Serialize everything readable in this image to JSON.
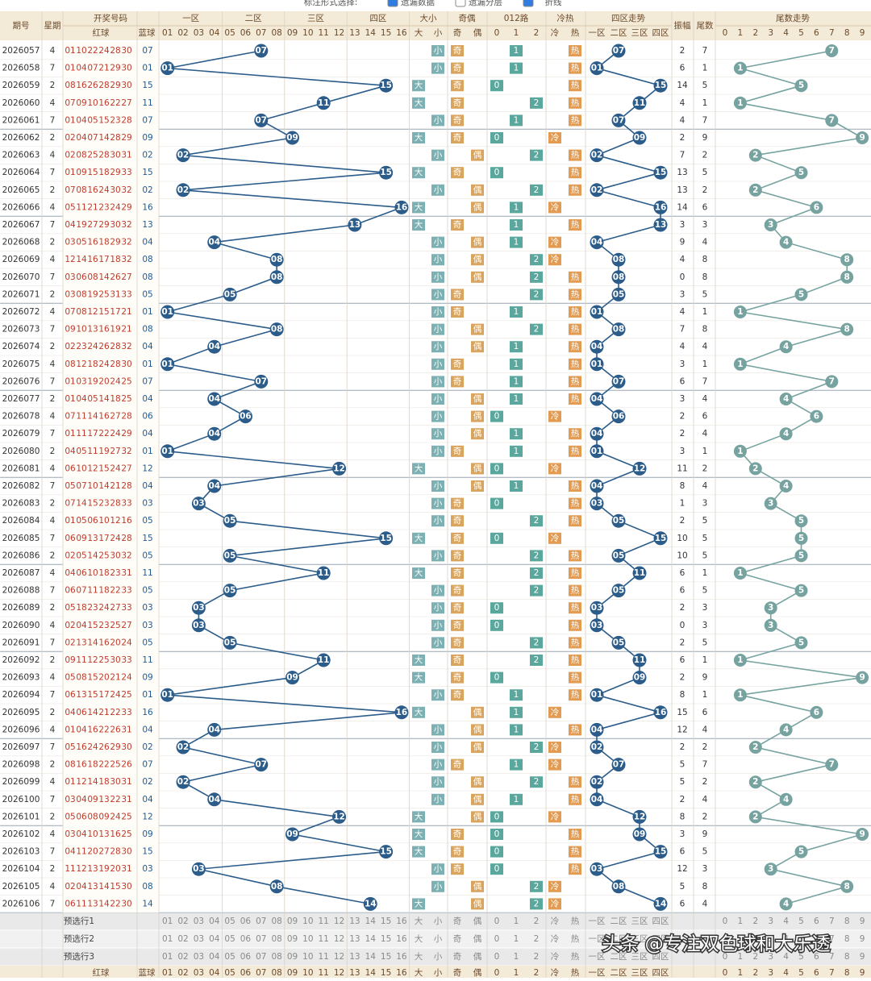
{
  "toolbar": {
    "label": "标注形式选择:",
    "options": [
      "遗漏数据",
      "遗漏分层",
      "折线"
    ]
  },
  "header": {
    "period": "期号",
    "week": "星期",
    "draw": "开奖号码",
    "red": "红球",
    "blue": "蓝球",
    "zones": [
      "一区",
      "二区",
      "三区",
      "四区"
    ],
    "size": "大小",
    "parity": "奇偶",
    "route": "012路",
    "heat": "冷热",
    "zone_trend": "四区走势",
    "amp": "振幅",
    "tail": "尾数",
    "tail_trend": "尾数走势",
    "blue_cols": [
      "01",
      "02",
      "03",
      "04",
      "05",
      "06",
      "07",
      "08",
      "09",
      "10",
      "11",
      "12",
      "13",
      "14",
      "15",
      "16"
    ],
    "size_cols": [
      "大",
      "小"
    ],
    "parity_cols": [
      "奇",
      "偶"
    ],
    "route_cols": [
      0,
      1,
      2
    ],
    "heat_cols": [
      "冷",
      "热"
    ],
    "zone_cols": [
      "一区",
      "二区",
      "三区",
      "四区"
    ],
    "tail_cols": [
      0,
      1,
      2,
      3,
      4,
      5,
      6,
      7,
      8,
      9
    ]
  },
  "rows": [
    [
      "2026057",
      4,
      [
        "01",
        "10",
        "22",
        "24",
        "28",
        "30"
      ],
      "07",
      "小",
      "奇",
      1,
      "热",
      2,
      7
    ],
    [
      "2026058",
      7,
      [
        "01",
        "04",
        "07",
        "21",
        "29",
        "30"
      ],
      "01",
      "小",
      "奇",
      1,
      "热",
      6,
      1
    ],
    [
      "2026059",
      2,
      [
        "08",
        "16",
        "26",
        "28",
        "29",
        "30"
      ],
      "15",
      "大",
      "奇",
      0,
      "热",
      14,
      5
    ],
    [
      "2026060",
      4,
      [
        "07",
        "09",
        "10",
        "16",
        "22",
        "27"
      ],
      "11",
      "大",
      "奇",
      2,
      "热",
      4,
      1
    ],
    [
      "2026061",
      7,
      [
        "01",
        "04",
        "05",
        "15",
        "23",
        "28"
      ],
      "07",
      "小",
      "奇",
      1,
      "热",
      4,
      7
    ],
    [
      "2026062",
      2,
      [
        "02",
        "04",
        "07",
        "14",
        "28",
        "29"
      ],
      "09",
      "大",
      "奇",
      0,
      "冷",
      2,
      9
    ],
    [
      "2026063",
      4,
      [
        "02",
        "08",
        "25",
        "28",
        "30",
        "31"
      ],
      "02",
      "小",
      "偶",
      2,
      "热",
      7,
      2
    ],
    [
      "2026064",
      7,
      [
        "01",
        "09",
        "15",
        "18",
        "29",
        "33"
      ],
      "15",
      "大",
      "奇",
      0,
      "热",
      13,
      5
    ],
    [
      "2026065",
      2,
      [
        "07",
        "08",
        "16",
        "24",
        "30",
        "32"
      ],
      "02",
      "小",
      "偶",
      2,
      "热",
      13,
      2
    ],
    [
      "2026066",
      4,
      [
        "05",
        "11",
        "21",
        "23",
        "24",
        "29"
      ],
      "16",
      "大",
      "偶",
      1,
      "冷",
      14,
      6
    ],
    [
      "2026067",
      7,
      [
        "04",
        "19",
        "27",
        "29",
        "30",
        "32"
      ],
      "13",
      "大",
      "奇",
      1,
      "热",
      3,
      3
    ],
    [
      "2026068",
      2,
      [
        "03",
        "05",
        "16",
        "18",
        "29",
        "32"
      ],
      "04",
      "小",
      "偶",
      1,
      "冷",
      9,
      4
    ],
    [
      "2026069",
      4,
      [
        "12",
        "14",
        "16",
        "17",
        "18",
        "32"
      ],
      "08",
      "小",
      "偶",
      2,
      "冷",
      4,
      8
    ],
    [
      "2026070",
      7,
      [
        "03",
        "06",
        "08",
        "14",
        "26",
        "27"
      ],
      "08",
      "小",
      "偶",
      2,
      "热",
      0,
      8
    ],
    [
      "2026071",
      2,
      [
        "03",
        "08",
        "19",
        "25",
        "31",
        "33"
      ],
      "05",
      "小",
      "奇",
      2,
      "热",
      3,
      5
    ],
    [
      "2026072",
      4,
      [
        "07",
        "08",
        "12",
        "15",
        "17",
        "21"
      ],
      "01",
      "小",
      "奇",
      1,
      "热",
      4,
      1
    ],
    [
      "2026073",
      7,
      [
        "09",
        "10",
        "13",
        "16",
        "19",
        "21"
      ],
      "08",
      "小",
      "偶",
      2,
      "热",
      7,
      8
    ],
    [
      "2026074",
      2,
      [
        "02",
        "23",
        "24",
        "26",
        "28",
        "32"
      ],
      "04",
      "小",
      "偶",
      1,
      "热",
      4,
      4
    ],
    [
      "2026075",
      4,
      [
        "08",
        "12",
        "18",
        "24",
        "28",
        "30"
      ],
      "01",
      "小",
      "奇",
      1,
      "热",
      3,
      1
    ],
    [
      "2026076",
      7,
      [
        "01",
        "03",
        "19",
        "20",
        "24",
        "25"
      ],
      "07",
      "小",
      "奇",
      1,
      "热",
      6,
      7
    ],
    [
      "2026077",
      2,
      [
        "01",
        "04",
        "05",
        "14",
        "18",
        "25"
      ],
      "04",
      "小",
      "偶",
      1,
      "热",
      3,
      4
    ],
    [
      "2026078",
      4,
      [
        "07",
        "11",
        "14",
        "16",
        "27",
        "28"
      ],
      "06",
      "小",
      "偶",
      0,
      "冷",
      2,
      6
    ],
    [
      "2026079",
      7,
      [
        "01",
        "11",
        "17",
        "22",
        "24",
        "29"
      ],
      "04",
      "小",
      "偶",
      1,
      "热",
      2,
      4
    ],
    [
      "2026080",
      2,
      [
        "04",
        "05",
        "11",
        "19",
        "27",
        "32"
      ],
      "01",
      "小",
      "奇",
      1,
      "热",
      3,
      1
    ],
    [
      "2026081",
      4,
      [
        "06",
        "10",
        "12",
        "15",
        "24",
        "27"
      ],
      "12",
      "大",
      "偶",
      0,
      "冷",
      11,
      2
    ],
    [
      "2026082",
      7,
      [
        "05",
        "07",
        "10",
        "14",
        "21",
        "28"
      ],
      "04",
      "小",
      "偶",
      1,
      "热",
      8,
      4
    ],
    [
      "2026083",
      2,
      [
        "07",
        "14",
        "15",
        "23",
        "28",
        "33"
      ],
      "03",
      "小",
      "奇",
      0,
      "热",
      1,
      3
    ],
    [
      "2026084",
      4,
      [
        "01",
        "05",
        "06",
        "10",
        "12",
        "16"
      ],
      "05",
      "小",
      "奇",
      2,
      "热",
      2,
      5
    ],
    [
      "2026085",
      7,
      [
        "06",
        "09",
        "13",
        "17",
        "24",
        "28"
      ],
      "15",
      "大",
      "奇",
      0,
      "冷",
      10,
      5
    ],
    [
      "2026086",
      2,
      [
        "02",
        "05",
        "14",
        "25",
        "30",
        "32"
      ],
      "05",
      "小",
      "奇",
      2,
      "热",
      10,
      5
    ],
    [
      "2026087",
      4,
      [
        "04",
        "06",
        "10",
        "18",
        "23",
        "31"
      ],
      "11",
      "大",
      "奇",
      2,
      "热",
      6,
      1
    ],
    [
      "2026088",
      7,
      [
        "06",
        "07",
        "11",
        "18",
        "22",
        "33"
      ],
      "05",
      "小",
      "奇",
      2,
      "热",
      6,
      5
    ],
    [
      "2026089",
      2,
      [
        "05",
        "18",
        "23",
        "24",
        "27",
        "33"
      ],
      "03",
      "小",
      "奇",
      0,
      "热",
      2,
      3
    ],
    [
      "2026090",
      4,
      [
        "02",
        "04",
        "15",
        "23",
        "25",
        "27"
      ],
      "03",
      "小",
      "奇",
      0,
      "热",
      0,
      3
    ],
    [
      "2026091",
      7,
      [
        "02",
        "13",
        "14",
        "16",
        "20",
        "24"
      ],
      "05",
      "小",
      "奇",
      2,
      "热",
      2,
      5
    ],
    [
      "2026092",
      2,
      [
        "09",
        "11",
        "12",
        "25",
        "30",
        "33"
      ],
      "11",
      "大",
      "奇",
      2,
      "热",
      6,
      1
    ],
    [
      "2026093",
      4,
      [
        "05",
        "08",
        "15",
        "20",
        "21",
        "24"
      ],
      "09",
      "大",
      "奇",
      0,
      "热",
      2,
      9
    ],
    [
      "2026094",
      7,
      [
        "06",
        "13",
        "15",
        "17",
        "24",
        "25"
      ],
      "01",
      "小",
      "奇",
      1,
      "热",
      8,
      1
    ],
    [
      "2026095",
      2,
      [
        "04",
        "06",
        "14",
        "21",
        "22",
        "33"
      ],
      "16",
      "大",
      "偶",
      1,
      "冷",
      15,
      6
    ],
    [
      "2026096",
      4,
      [
        "01",
        "04",
        "16",
        "22",
        "26",
        "31"
      ],
      "04",
      "小",
      "偶",
      1,
      "热",
      12,
      4
    ],
    [
      "2026097",
      7,
      [
        "05",
        "16",
        "24",
        "26",
        "29",
        "30"
      ],
      "02",
      "小",
      "偶",
      2,
      "冷",
      2,
      2
    ],
    [
      "2026098",
      2,
      [
        "08",
        "16",
        "18",
        "22",
        "25",
        "26"
      ],
      "07",
      "小",
      "奇",
      1,
      "冷",
      5,
      7
    ],
    [
      "2026099",
      4,
      [
        "01",
        "12",
        "14",
        "18",
        "30",
        "31"
      ],
      "02",
      "小",
      "偶",
      2,
      "热",
      5,
      2
    ],
    [
      "2026100",
      7,
      [
        "03",
        "04",
        "09",
        "13",
        "22",
        "31"
      ],
      "04",
      "小",
      "偶",
      1,
      "热",
      2,
      4
    ],
    [
      "2026101",
      2,
      [
        "05",
        "06",
        "08",
        "09",
        "24",
        "25"
      ],
      "12",
      "大",
      "偶",
      0,
      "冷",
      8,
      2
    ],
    [
      "2026102",
      4,
      [
        "03",
        "04",
        "10",
        "13",
        "16",
        "25"
      ],
      "09",
      "大",
      "奇",
      0,
      "热",
      3,
      9
    ],
    [
      "2026103",
      7,
      [
        "04",
        "11",
        "20",
        "27",
        "28",
        "30"
      ],
      "15",
      "大",
      "奇",
      0,
      "热",
      6,
      5
    ],
    [
      "2026104",
      2,
      [
        "11",
        "12",
        "13",
        "19",
        "20",
        "31"
      ],
      "03",
      "小",
      "奇",
      0,
      "热",
      12,
      3
    ],
    [
      "2026105",
      4,
      [
        "02",
        "04",
        "13",
        "14",
        "15",
        "30"
      ],
      "08",
      "小",
      "偶",
      2,
      "冷",
      5,
      8
    ],
    [
      "2026106",
      7,
      [
        "06",
        "11",
        "13",
        "14",
        "22",
        "30"
      ],
      "14",
      "大",
      "偶",
      2,
      "冷",
      6,
      4
    ]
  ],
  "footer": [
    "预选行1",
    "预选行2",
    "预选行3"
  ],
  "watermark": "头条 @专注双色球和大乐透"
}
